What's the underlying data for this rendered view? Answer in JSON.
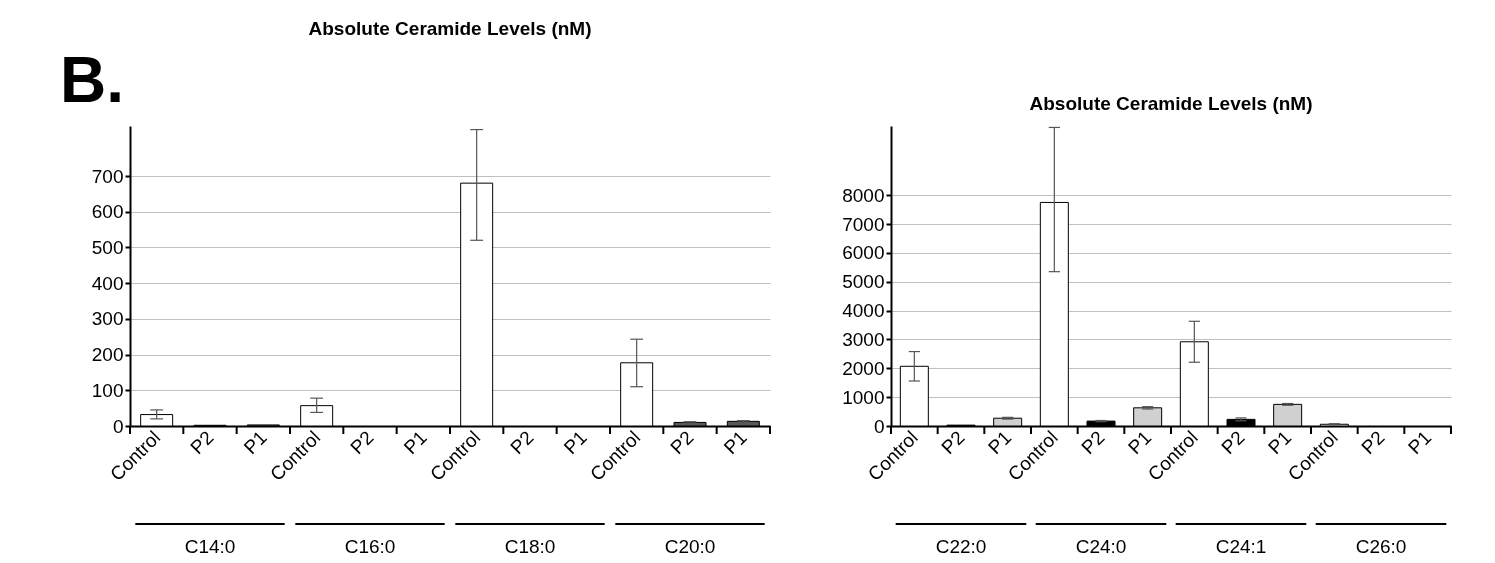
{
  "chart_data": [
    {
      "type": "bar",
      "title": "Absolute Ceramide Levels (nM)",
      "categories": [
        "Control",
        "P2",
        "P1",
        "Control",
        "P2",
        "P1",
        "Control",
        "P2",
        "P1",
        "Control",
        "P2",
        "P1"
      ],
      "values": [
        32,
        2,
        3,
        57,
        0,
        0,
        680,
        0,
        0,
        177,
        10,
        13
      ],
      "colors": [
        "#ffffff",
        "#595959",
        "#595959",
        "#ffffff",
        "#595959",
        "#595959",
        "#ffffff",
        "#595959",
        "#595959",
        "#ffffff",
        "#595959",
        "#595959"
      ],
      "errors": [
        [
          20,
          45
        ],
        null,
        null,
        [
          38,
          78
        ],
        null,
        null,
        [
          520,
          830
        ],
        null,
        null,
        [
          110,
          243
        ],
        [
          8,
          12
        ],
        [
          11,
          15
        ]
      ],
      "ylim": [
        0,
        840
      ],
      "yticks": [
        0,
        100,
        200,
        300,
        400,
        500,
        600,
        700
      ],
      "grid": "y",
      "annotations": [
        "B.",
        "C14:0",
        "C16:0",
        "C18:0",
        "C20:0"
      ]
    },
    {
      "type": "bar",
      "title": "Absolute Ceramide Levels (nM)",
      "categories": [
        "Control",
        "P2",
        "P1",
        "Control",
        "P2",
        "P1",
        "Control",
        "P2",
        "P1",
        "Control",
        "P2",
        "P1"
      ],
      "values": [
        2070,
        30,
        270,
        7750,
        170,
        630,
        2920,
        230,
        750,
        60,
        0,
        0
      ],
      "colors": [
        "#ffffff",
        "#000000",
        "#d0d0d0",
        "#ffffff",
        "#000000",
        "#d0d0d0",
        "#ffffff",
        "#000000",
        "#d0d0d0",
        "#ffffff",
        "#000000",
        "#d0d0d0"
      ],
      "errors": [
        [
          1560,
          2580
        ],
        null,
        [
          240,
          300
        ],
        [
          5350,
          10350
        ],
        [
          150,
          190
        ],
        [
          590,
          670
        ],
        [
          2210,
          3630
        ],
        [
          180,
          280
        ],
        [
          720,
          780
        ],
        [
          40,
          80
        ],
        null,
        null
      ],
      "ylim": [
        0,
        10400
      ],
      "yticks": [
        0,
        1000,
        2000,
        3000,
        4000,
        5000,
        6000,
        7000,
        8000
      ],
      "grid": "y",
      "annotations": [
        "C22:0",
        "C24:0",
        "C24:1",
        "C26:0"
      ]
    }
  ]
}
